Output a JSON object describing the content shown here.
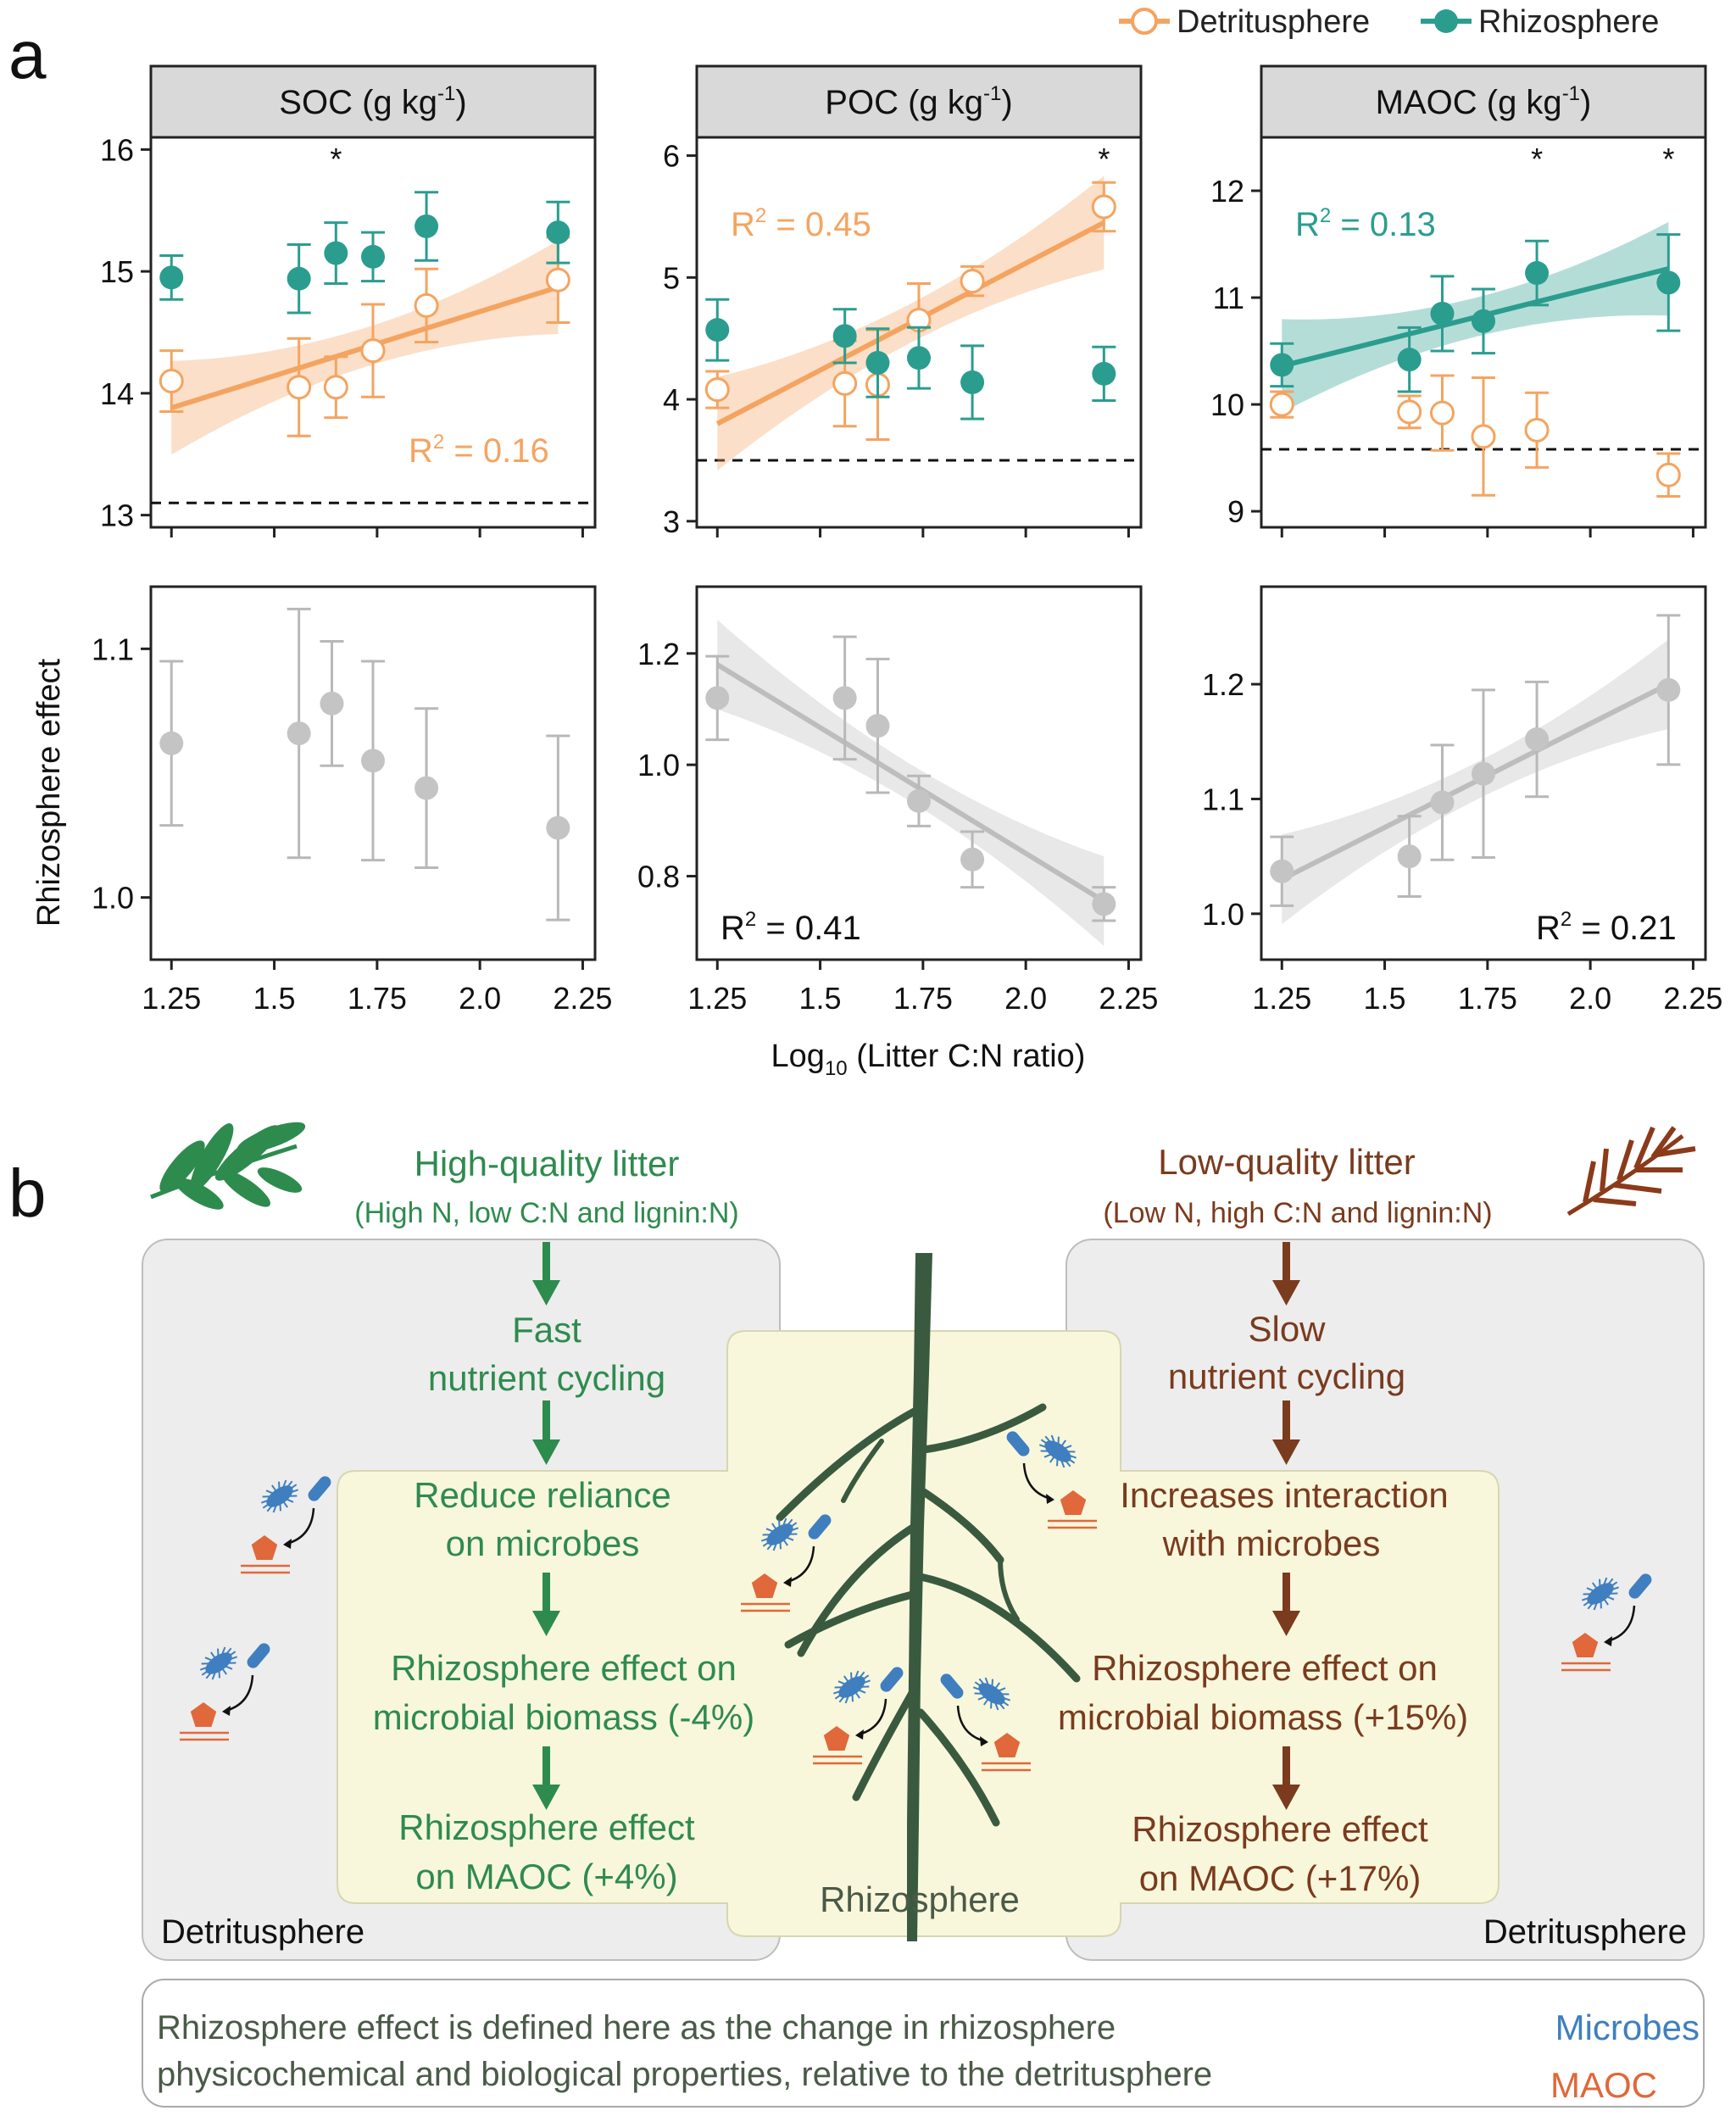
{
  "panel_a": {
    "label": "a",
    "legend": [
      {
        "name": "Detritusphere",
        "color": "#f4a460"
      },
      {
        "name": "Rhizosphere",
        "color": "#2a9d8f"
      }
    ],
    "x_label_prefix": "Log",
    "x_label_sub": "10",
    "x_label_rest": " (Litter C:N ratio)",
    "bottom_y_label": "Rhizosphere effect",
    "x_ticks": [
      "1.25",
      "1.5",
      "1.75",
      "2.0",
      "2.25"
    ]
  },
  "chart_data": [
    {
      "type": "scatter",
      "strip_title": "SOC (g kg",
      "strip_sup": "-1",
      "strip_close": ")",
      "xlim": [
        1.2,
        2.28
      ],
      "ylim": [
        12.9,
        16.1
      ],
      "y_ticks": [
        "13",
        "14",
        "15",
        "16"
      ],
      "baseline": 13.1,
      "stars_x": [
        1.65
      ],
      "series": [
        {
          "name": "Detritusphere",
          "x": [
            1.25,
            1.56,
            1.65,
            1.74,
            1.87,
            2.19
          ],
          "y": [
            14.1,
            14.05,
            14.05,
            14.35,
            14.72,
            14.93
          ],
          "err": [
            0.25,
            0.4,
            0.25,
            0.38,
            0.3,
            0.35
          ]
        },
        {
          "name": "Rhizosphere",
          "x": [
            1.25,
            1.56,
            1.65,
            1.74,
            1.87,
            2.19
          ],
          "y": [
            14.95,
            14.94,
            15.15,
            15.12,
            15.37,
            15.32
          ],
          "err": [
            0.18,
            0.28,
            0.25,
            0.2,
            0.28,
            0.25
          ]
        }
      ],
      "fit": {
        "series": "Detritusphere",
        "x": [
          1.25,
          2.19
        ],
        "y": [
          13.88,
          14.87
        ]
      },
      "r2_text": "R",
      "r2_value": " = 0.16"
    },
    {
      "type": "scatter",
      "strip_title": "POC (g kg",
      "strip_sup": "-1",
      "strip_close": ")",
      "xlim": [
        1.2,
        2.28
      ],
      "ylim": [
        2.95,
        6.15
      ],
      "y_ticks": [
        "3",
        "4",
        "5",
        "6"
      ],
      "baseline": 3.5,
      "stars_x": [
        2.19
      ],
      "series": [
        {
          "name": "Detritusphere",
          "x": [
            1.25,
            1.56,
            1.64,
            1.74,
            1.87,
            2.19
          ],
          "y": [
            4.08,
            4.13,
            4.12,
            4.65,
            4.97,
            5.58
          ],
          "err": [
            0.15,
            0.35,
            0.45,
            0.3,
            0.12,
            0.2
          ]
        },
        {
          "name": "Rhizosphere",
          "x": [
            1.25,
            1.56,
            1.64,
            1.74,
            1.87,
            2.19
          ],
          "y": [
            4.57,
            4.52,
            4.3,
            4.34,
            4.14,
            4.21
          ],
          "err": [
            0.25,
            0.22,
            0.28,
            0.25,
            0.3,
            0.22
          ]
        }
      ],
      "fit": {
        "series": "Detritusphere",
        "x": [
          1.25,
          2.19
        ],
        "y": [
          3.8,
          5.45
        ]
      },
      "r2_text": "R",
      "r2_value": " = 0.45"
    },
    {
      "type": "scatter",
      "strip_title": "MAOC (g kg",
      "strip_sup": "-1",
      "strip_close": ")",
      "xlim": [
        1.2,
        2.28
      ],
      "ylim": [
        8.85,
        12.5
      ],
      "y_ticks": [
        "9",
        "10",
        "11",
        "12"
      ],
      "baseline": 9.58,
      "stars_x": [
        1.87,
        2.19
      ],
      "series": [
        {
          "name": "Detritusphere",
          "x": [
            1.25,
            1.56,
            1.64,
            1.74,
            1.87,
            2.19
          ],
          "y": [
            10.0,
            9.93,
            9.92,
            9.7,
            9.76,
            9.34
          ],
          "err": [
            0.12,
            0.15,
            0.35,
            0.55,
            0.35,
            0.2
          ]
        },
        {
          "name": "Rhizosphere",
          "x": [
            1.25,
            1.56,
            1.64,
            1.74,
            1.87,
            2.19
          ],
          "y": [
            10.37,
            10.42,
            10.85,
            10.78,
            11.23,
            11.14
          ],
          "err": [
            0.2,
            0.3,
            0.35,
            0.3,
            0.3,
            0.45
          ]
        }
      ],
      "fit": {
        "series": "Rhizosphere",
        "x": [
          1.25,
          2.19
        ],
        "y": [
          10.36,
          11.27
        ]
      },
      "r2_text": "R",
      "r2_value": " = 0.13"
    },
    {
      "type": "scatter",
      "xlim": [
        1.2,
        2.28
      ],
      "ylim": [
        0.975,
        1.125
      ],
      "y_ticks": [
        "1.0",
        "1.1"
      ],
      "series": [
        {
          "name": "",
          "x": [
            1.25,
            1.56,
            1.64,
            1.74,
            1.87,
            2.19
          ],
          "y": [
            1.062,
            1.066,
            1.078,
            1.055,
            1.044,
            1.028
          ],
          "err": [
            0.033,
            0.05,
            0.025,
            0.04,
            0.032,
            0.037
          ]
        }
      ]
    },
    {
      "type": "scatter",
      "xlim": [
        1.2,
        2.28
      ],
      "ylim": [
        0.65,
        1.32
      ],
      "y_ticks": [
        "0.8",
        "1.0",
        "1.2"
      ],
      "series": [
        {
          "name": "",
          "x": [
            1.25,
            1.56,
            1.64,
            1.74,
            1.87,
            2.19
          ],
          "y": [
            1.12,
            1.12,
            1.07,
            0.935,
            0.83,
            0.75
          ],
          "err": [
            0.075,
            0.11,
            0.12,
            0.045,
            0.05,
            0.03
          ]
        }
      ],
      "fit": {
        "x": [
          1.25,
          2.19
        ],
        "y": [
          1.18,
          0.755
        ]
      },
      "r2_text": "R",
      "r2_value": " = 0.41"
    },
    {
      "type": "scatter",
      "xlim": [
        1.2,
        2.28
      ],
      "ylim": [
        0.96,
        1.285
      ],
      "y_ticks": [
        "1.0",
        "1.1",
        "1.2"
      ],
      "series": [
        {
          "name": "",
          "x": [
            1.25,
            1.56,
            1.64,
            1.74,
            1.87,
            2.19
          ],
          "y": [
            1.037,
            1.05,
            1.097,
            1.122,
            1.152,
            1.195
          ],
          "err": [
            0.03,
            0.035,
            0.05,
            0.073,
            0.05,
            0.065
          ]
        }
      ],
      "fit": {
        "x": [
          1.25,
          2.19
        ],
        "y": [
          1.03,
          1.2
        ]
      },
      "r2_text": "R",
      "r2_value": " = 0.21"
    }
  ],
  "panel_b": {
    "label": "b",
    "left": {
      "title": "High-quality litter",
      "subtitle": "(High N, low C:N and lignin:N)",
      "step1_l1": "Fast",
      "step1_l2": "nutrient cycling",
      "step2_l1": "Reduce reliance",
      "step2_l2": "on microbes",
      "step3_l1": "Rhizosphere effect on",
      "step3_l2": "microbial biomass (-4%)",
      "step4_l1": "Rhizosphere effect",
      "step4_l2": "on MAOC (+4%)",
      "zone": "Detritusphere",
      "color": "#2e8b4e"
    },
    "right": {
      "title": "Low-quality litter",
      "subtitle": "(Low N, high C:N and lignin:N)",
      "step1_l1": "Slow",
      "step1_l2": "nutrient cycling",
      "step2_l1": "Increases interaction",
      "step2_l2": "with  microbes",
      "step3_l1": "Rhizosphere effect on",
      "step3_l2": "microbial biomass (+15%)",
      "step4_l1": "Rhizosphere effect",
      "step4_l2": "on MAOC (+17%)",
      "zone": "Detritusphere",
      "color": "#7a3b1e"
    },
    "center_zone": "Rhizosphere",
    "definition_l1": "Rhizosphere effect is defined here as the change in rhizosphere",
    "definition_l2": "physicochemical and biological properties, relative to the detritusphere",
    "key_microbes": "Microbes",
    "key_maoc": "MAOC",
    "microbe_color": "#3f7fbf",
    "maoc_color": "#e0683a"
  }
}
